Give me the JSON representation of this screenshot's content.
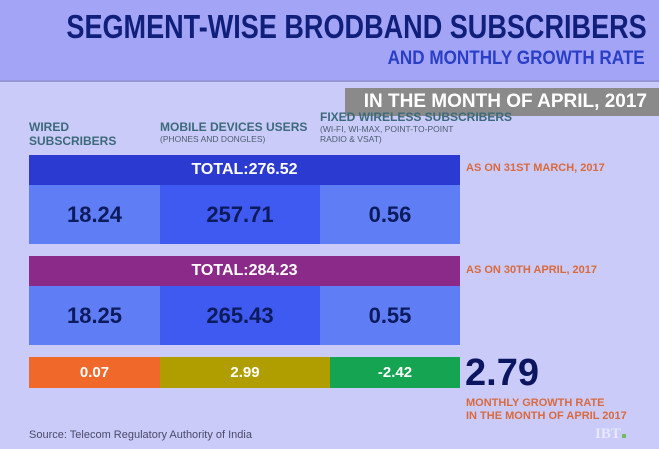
{
  "header": {
    "title": "SEGMENT-WISE BRODBAND SUBSCRIBERS",
    "subtitle": "AND MONTHLY GROWTH RATE",
    "period": "IN THE MONTH OF APRIL, 2017"
  },
  "columns": [
    {
      "label": "WIRED SUBSCRIBERS",
      "sub": ""
    },
    {
      "label": "MOBILE DEVICES USERS",
      "sub": "(PHONES AND DONGLES)"
    },
    {
      "label": "FIXED WIRELESS SUBSCRIBERS",
      "sub": "(WI-FI, WI-MAX, POINT-TO-POINT RADIO & VSAT)"
    }
  ],
  "chart_data": {
    "type": "table",
    "title": "SEGMENT-WISE BRODBAND SUBSCRIBERS AND MONTHLY GROWTH RATE",
    "rows": [
      {
        "label": "AS ON 31ST MARCH, 2017",
        "total": "TOTAL:276.52",
        "values": [
          "18.24",
          "257.71",
          "0.56"
        ]
      },
      {
        "label": "AS ON 30TH APRIL, 2017",
        "total": "TOTAL:284.23",
        "values": [
          "18.25",
          "265.43",
          "0.55"
        ]
      }
    ],
    "growth": {
      "values": [
        "0.07",
        "2.99",
        "-2.42"
      ],
      "overall": "2.79",
      "label_line1": "MONTHLY GROWTH RATE",
      "label_line2": "IN THE MONTH OF APRIL 2017"
    }
  },
  "colors": {
    "march_total": "#2b3bd2",
    "april_total": "#8c2a8a",
    "wired": "#f0682a",
    "mobile": "#b09e00",
    "fixed": "#15a452"
  },
  "footer": {
    "source": "Source: Telecom Regulatory Authority of India",
    "logo": "IBT"
  }
}
